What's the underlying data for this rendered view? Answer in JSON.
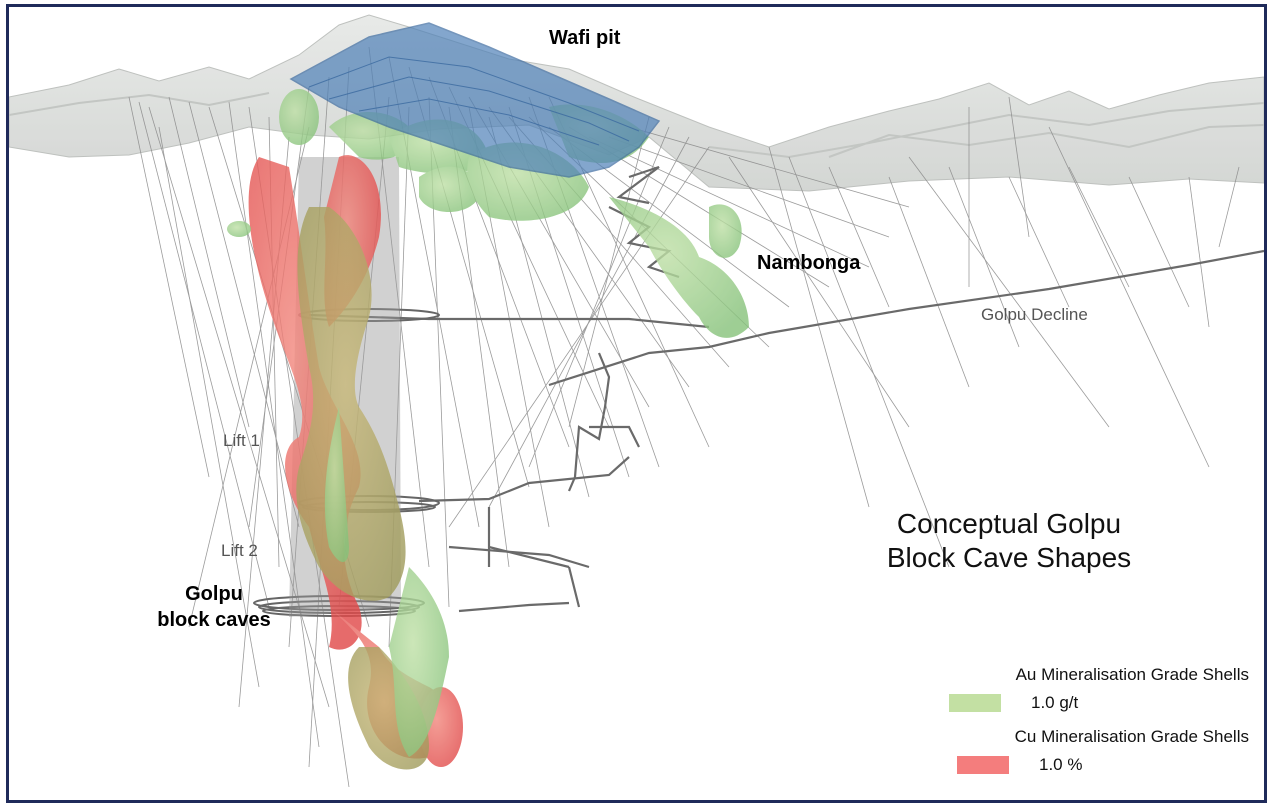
{
  "labels": {
    "wafi_pit": "Wafi pit",
    "nambonga": "Nambonga",
    "golpu_decline": "Golpu Decline",
    "lift1": "Lift 1",
    "lift2": "Lift 2",
    "golpu_block_caves_1": "Golpu",
    "golpu_block_caves_2": "block caves"
  },
  "title": {
    "line1": "Conceptual Golpu",
    "line2": "Block Cave Shapes"
  },
  "legend": {
    "au_heading": "Au Mineralisation Grade Shells",
    "au_value": "1.0 g/t",
    "au_color": "#c3e0a3",
    "cu_heading": "Cu Mineralisation Grade Shells",
    "cu_value": "1.0 %",
    "cu_color": "#f47d7d"
  },
  "colors": {
    "frame": "#1f2a5a",
    "terrain": "#d9dcd9",
    "pit": "#4f81b8",
    "au_shell": "#9fd08c",
    "cu_shell": "#ef5d5d",
    "drillhole": "#8a8a8a"
  }
}
